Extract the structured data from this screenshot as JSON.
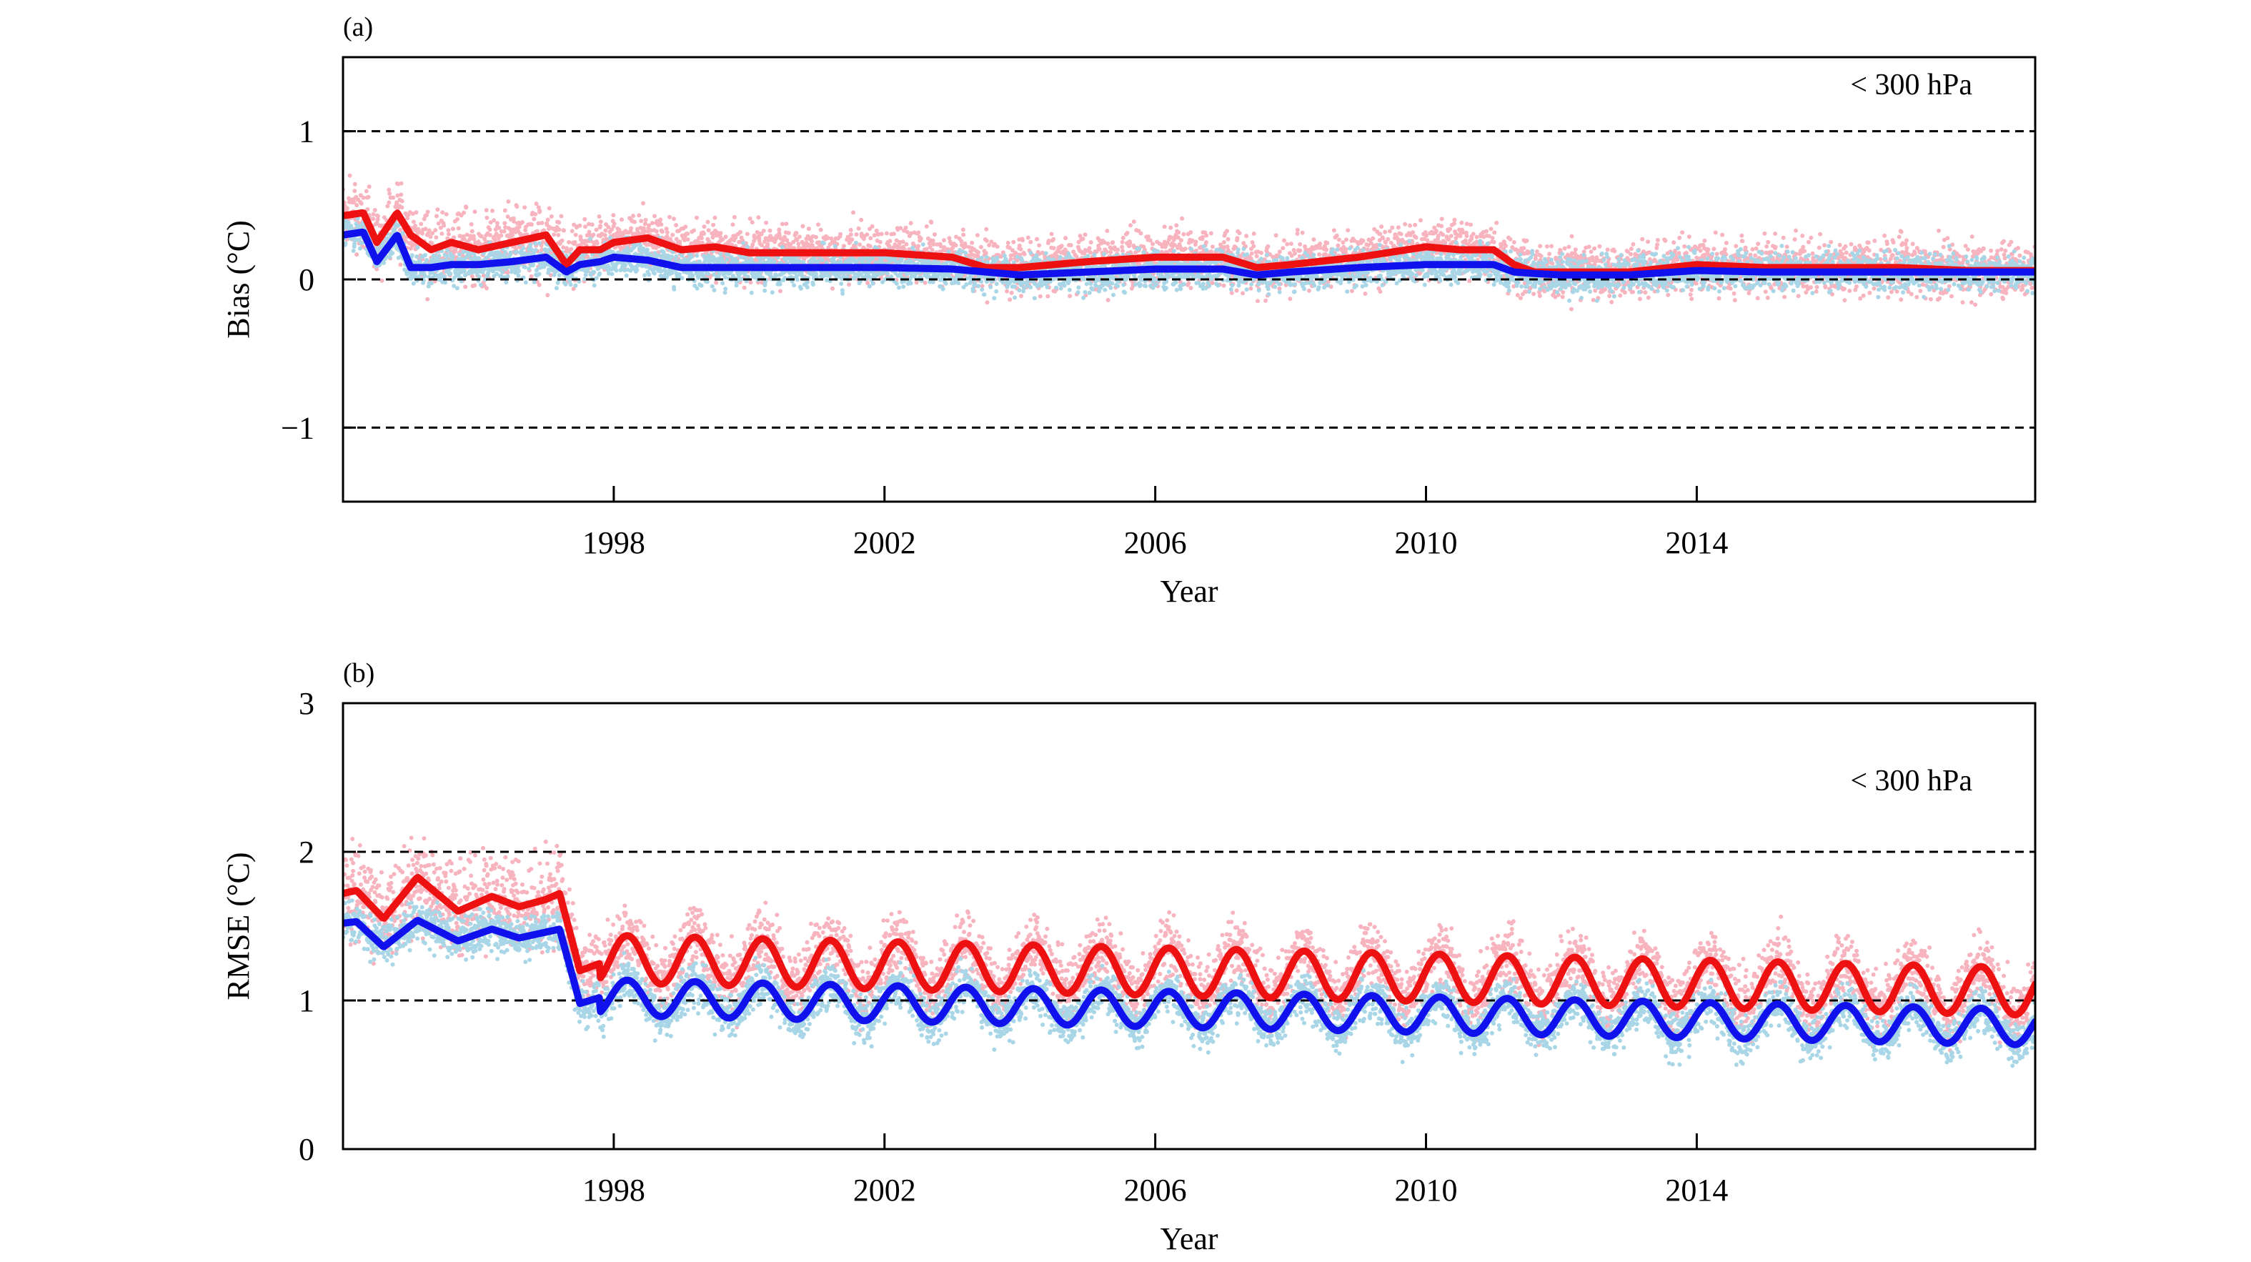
{
  "chart_data": [
    {
      "type": "scatter",
      "panel_label": "(a)",
      "xlabel": "Year",
      "ylabel": "Bias (°C)",
      "xlim": [
        1994.0,
        2019.0
      ],
      "ylim": [
        -1.5,
        1.5
      ],
      "xticks": [
        1998,
        2002,
        2006,
        2010,
        2014
      ],
      "xtick_labels": [
        "1998",
        "2002",
        "2006",
        "2010",
        "2014"
      ],
      "yticks": [
        -1,
        0,
        1
      ],
      "ytick_labels": [
        "−1",
        "0",
        "1"
      ],
      "reference_lines": [
        -1,
        0,
        1
      ],
      "annotation": "< 300 hPa",
      "grid": false,
      "legend": "none",
      "colors": {
        "red_line": "#ee1111",
        "blue_line": "#1111ee",
        "pink_points": "#f7b3be",
        "lightblue_points": "#a8d6e6"
      },
      "series": [
        {
          "style": "line",
          "color": "#ee1111",
          "x": [
            1994.0,
            1994.3,
            1994.5,
            1994.8,
            1995.0,
            1995.3,
            1995.6,
            1996.0,
            1996.5,
            1997.0,
            1997.3,
            1997.5,
            1997.8,
            1998.0,
            1998.5,
            1999.0,
            1999.5,
            2000.0,
            2001.0,
            2002.0,
            2003.0,
            2003.5,
            2004.0,
            2005.0,
            2006.0,
            2007.0,
            2007.5,
            2008.0,
            2009.0,
            2010.0,
            2010.5,
            2011.0,
            2011.3,
            2011.6,
            2012.0,
            2013.0,
            2014.0,
            2015.0,
            2016.0,
            2017.0,
            2018.0,
            2019.0
          ],
          "y": [
            0.43,
            0.45,
            0.25,
            0.45,
            0.3,
            0.2,
            0.25,
            0.2,
            0.25,
            0.3,
            0.1,
            0.2,
            0.2,
            0.25,
            0.28,
            0.2,
            0.22,
            0.18,
            0.18,
            0.18,
            0.15,
            0.08,
            0.08,
            0.12,
            0.15,
            0.15,
            0.08,
            0.1,
            0.15,
            0.22,
            0.2,
            0.2,
            0.1,
            0.05,
            0.05,
            0.05,
            0.1,
            0.08,
            0.08,
            0.08,
            0.06,
            0.06
          ]
        },
        {
          "style": "line",
          "color": "#1111ee",
          "x": [
            1994.0,
            1994.3,
            1994.5,
            1994.8,
            1995.0,
            1995.3,
            1995.6,
            1996.0,
            1996.5,
            1997.0,
            1997.3,
            1997.5,
            1997.8,
            1998.0,
            1998.5,
            1999.0,
            1999.5,
            2000.0,
            2001.0,
            2002.0,
            2003.0,
            2003.5,
            2004.0,
            2005.0,
            2006.0,
            2007.0,
            2007.5,
            2008.0,
            2009.0,
            2010.0,
            2010.5,
            2011.0,
            2011.3,
            2011.6,
            2012.0,
            2013.0,
            2014.0,
            2015.0,
            2016.0,
            2017.0,
            2018.0,
            2019.0
          ],
          "y": [
            0.3,
            0.32,
            0.12,
            0.3,
            0.08,
            0.08,
            0.1,
            0.1,
            0.12,
            0.15,
            0.05,
            0.1,
            0.12,
            0.15,
            0.13,
            0.08,
            0.08,
            0.08,
            0.08,
            0.08,
            0.07,
            0.05,
            0.03,
            0.05,
            0.07,
            0.07,
            0.03,
            0.05,
            0.08,
            0.1,
            0.1,
            0.1,
            0.05,
            0.04,
            0.03,
            0.03,
            0.06,
            0.05,
            0.05,
            0.05,
            0.05,
            0.05
          ]
        }
      ]
    },
    {
      "type": "scatter",
      "panel_label": "(b)",
      "xlabel": "Year",
      "ylabel": "RMSE (°C)",
      "xlim": [
        1994.0,
        2019.0
      ],
      "ylim": [
        0,
        3
      ],
      "xticks": [
        1998,
        2002,
        2006,
        2010,
        2014
      ],
      "xtick_labels": [
        "1998",
        "2002",
        "2006",
        "2010",
        "2014"
      ],
      "yticks": [
        0,
        1,
        2,
        3
      ],
      "ytick_labels": [
        "0",
        "1",
        "2",
        "3"
      ],
      "reference_lines": [
        1,
        2
      ],
      "annotation": "< 300 hPa",
      "grid": false,
      "legend": "none",
      "colors": {
        "red_line": "#ee1111",
        "blue_line": "#1111ee",
        "pink_points": "#f7b3be",
        "lightblue_points": "#a8d6e6"
      },
      "series": [
        {
          "style": "line",
          "color": "#ee1111",
          "x": [
            1994.0,
            1994.2,
            1994.6,
            1995.1,
            1995.7,
            1996.2,
            1996.6,
            1997.0,
            1997.2,
            1997.5,
            1997.8
          ],
          "y": [
            1.72,
            1.74,
            1.55,
            1.83,
            1.6,
            1.7,
            1.63,
            1.68,
            1.72,
            1.2,
            1.25
          ],
          "seasonal": {
            "start": 1997.8,
            "end": 2019.0,
            "period": 1.0,
            "mean_start": 1.28,
            "mean_end": 1.06,
            "amplitude": 0.16,
            "peak_phase": 0.2
          }
        },
        {
          "style": "line",
          "color": "#1111ee",
          "x": [
            1994.0,
            1994.2,
            1994.6,
            1995.1,
            1995.7,
            1996.2,
            1996.6,
            1997.0,
            1997.2,
            1997.5,
            1997.8
          ],
          "y": [
            1.52,
            1.53,
            1.36,
            1.54,
            1.4,
            1.48,
            1.42,
            1.46,
            1.48,
            0.98,
            1.02
          ],
          "seasonal": {
            "start": 1997.8,
            "end": 2019.0,
            "period": 1.0,
            "mean_start": 1.02,
            "mean_end": 0.82,
            "amplitude": 0.12,
            "peak_phase": 0.2
          }
        }
      ]
    }
  ]
}
